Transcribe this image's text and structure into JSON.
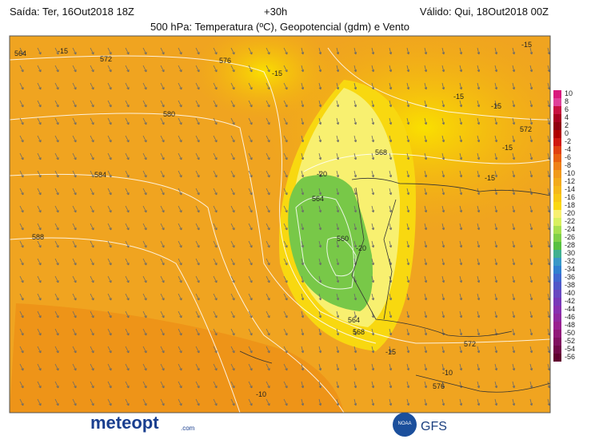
{
  "header": {
    "issued": "Saída: Ter, 16Out2018 18Z",
    "lead": "+30h",
    "valid": "Válido: Qui, 18Out2018 00Z",
    "title": "500 hPa: Temperatura (ºC), Geopotencial (gdm) e Vento"
  },
  "map_labels": [
    "564",
    "-15",
    "572",
    "576",
    "-15",
    "580",
    "584",
    "588",
    "568",
    "-20",
    "564",
    "560",
    "-20",
    "564",
    "568",
    "-15",
    "572",
    "-10",
    "576",
    "-10",
    "-15",
    "-15",
    "572",
    "-15",
    "-15",
    "-15"
  ],
  "colorbar": {
    "ticks": [
      10,
      8,
      6,
      4,
      2,
      0,
      -2,
      -4,
      -6,
      -8,
      -10,
      -12,
      -14,
      -16,
      -18,
      -20,
      -22,
      -24,
      -26,
      -28,
      -30,
      -32,
      -34,
      -36,
      -38,
      -40,
      -42,
      -44,
      -46,
      -48,
      -50,
      -52,
      -54,
      -56
    ],
    "colors": [
      "#d8187c",
      "#e0409a",
      "#c81040",
      "#a80020",
      "#900010",
      "#b00000",
      "#d01810",
      "#e04010",
      "#e86010",
      "#ee8018",
      "#f09a1c",
      "#f2aa1c",
      "#f5b81a",
      "#f8c814",
      "#fad810",
      "#f8f070",
      "#d8f060",
      "#a8e050",
      "#80d048",
      "#58c040",
      "#40b090",
      "#3898c8",
      "#3080d0",
      "#4068d0",
      "#5058c8",
      "#6848c0",
      "#7838b8",
      "#8830b0",
      "#9028a0",
      "#982090",
      "#901878",
      "#801060",
      "#700848",
      "#600030"
    ]
  },
  "footer": {
    "brand": "meteopt",
    "brand_suffix": ".com",
    "agency": "NOAA",
    "model": "GFS"
  }
}
